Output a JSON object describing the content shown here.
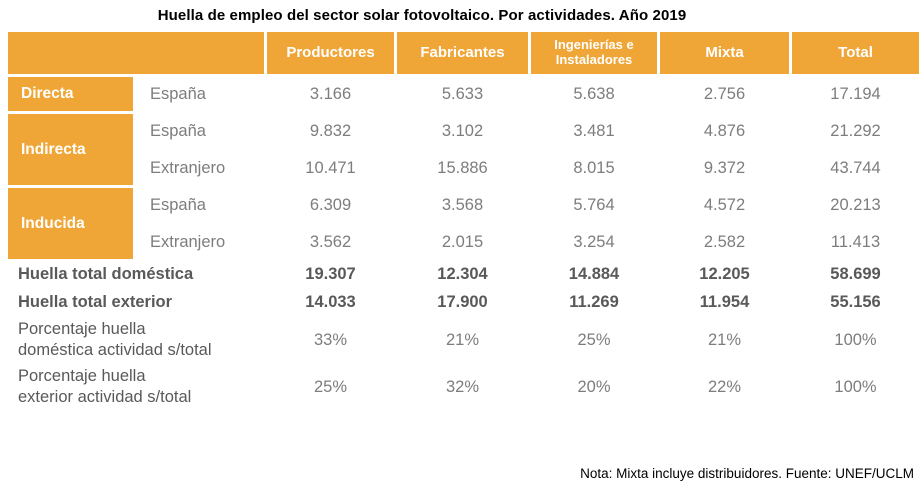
{
  "title": "Huella de empleo del sector solar fotovoltaico. Por actividades. Año 2019",
  "note": "Nota: Mixta incluye distribuidores. Fuente: UNEF/UCLM",
  "colors": {
    "accent_orange": "#F0A636",
    "header_text": "#FFFFFF",
    "body_text": "#7D7D7D",
    "strong_text": "#595959",
    "title_text": "#000000"
  },
  "table": {
    "columns": [
      "Productores",
      "Fabricantes",
      "Ingenierías e Instaladores",
      "Mixta",
      "Total"
    ],
    "groups": [
      {
        "label": "Directa",
        "rows": [
          {
            "scope": "España",
            "values": [
              "3.166",
              "5.633",
              "5.638",
              "2.756",
              "17.194"
            ]
          }
        ]
      },
      {
        "label": "Indirecta",
        "rows": [
          {
            "scope": "España",
            "values": [
              "9.832",
              "3.102",
              "3.481",
              "4.876",
              "21.292"
            ]
          },
          {
            "scope": "Extranjero",
            "values": [
              "10.471",
              "15.886",
              "8.015",
              "9.372",
              "43.744"
            ]
          }
        ]
      },
      {
        "label": "Inducida",
        "rows": [
          {
            "scope": "España",
            "values": [
              "6.309",
              "3.568",
              "5.764",
              "4.572",
              "20.213"
            ]
          },
          {
            "scope": "Extranjero",
            "values": [
              "3.562",
              "2.015",
              "3.254",
              "2.582",
              "11.413"
            ]
          }
        ]
      }
    ],
    "summary_rows": [
      {
        "label": "Huella total doméstica",
        "style": "bold",
        "values": [
          "19.307",
          "12.304",
          "14.884",
          "12.205",
          "58.699"
        ]
      },
      {
        "label": "Huella total exterior",
        "style": "bold",
        "values": [
          "14.033",
          "17.900",
          "11.269",
          "11.954",
          "55.156"
        ]
      },
      {
        "label": "Porcentaje huella\ndoméstica actividad s/total",
        "style": "pct",
        "values": [
          "33%",
          "21%",
          "25%",
          "21%",
          "100%"
        ]
      },
      {
        "label": "Porcentaje huella\nexterior actividad s/total",
        "style": "pct",
        "values": [
          "25%",
          "32%",
          "20%",
          "22%",
          "100%"
        ]
      }
    ]
  },
  "chart_data": {
    "type": "table",
    "title": "Huella de empleo del sector solar fotovoltaico. Por actividades. Año 2019",
    "columns": [
      "Productores",
      "Fabricantes",
      "Ingenierías e Instaladores",
      "Mixta",
      "Total"
    ],
    "rows": [
      {
        "group": "Directa",
        "scope": "España",
        "values": [
          3166,
          5633,
          5638,
          2756,
          17194
        ]
      },
      {
        "group": "Indirecta",
        "scope": "España",
        "values": [
          9832,
          3102,
          3481,
          4876,
          21292
        ]
      },
      {
        "group": "Indirecta",
        "scope": "Extranjero",
        "values": [
          10471,
          15886,
          8015,
          9372,
          43744
        ]
      },
      {
        "group": "Inducida",
        "scope": "España",
        "values": [
          6309,
          3568,
          5764,
          4572,
          20213
        ]
      },
      {
        "group": "Inducida",
        "scope": "Extranjero",
        "values": [
          3562,
          2015,
          3254,
          2582,
          11413
        ]
      },
      {
        "group": "Huella total doméstica",
        "scope": "",
        "values": [
          19307,
          12304,
          14884,
          12205,
          58699
        ]
      },
      {
        "group": "Huella total exterior",
        "scope": "",
        "values": [
          14033,
          17900,
          11269,
          11954,
          55156
        ]
      },
      {
        "group": "Porcentaje huella doméstica actividad s/total",
        "scope": "",
        "values": [
          "33%",
          "21%",
          "25%",
          "21%",
          "100%"
        ]
      },
      {
        "group": "Porcentaje huella exterior actividad s/total",
        "scope": "",
        "values": [
          "25%",
          "32%",
          "20%",
          "22%",
          "100%"
        ]
      }
    ],
    "note": "Nota: Mixta incluye distribuidores. Fuente: UNEF/UCLM"
  }
}
